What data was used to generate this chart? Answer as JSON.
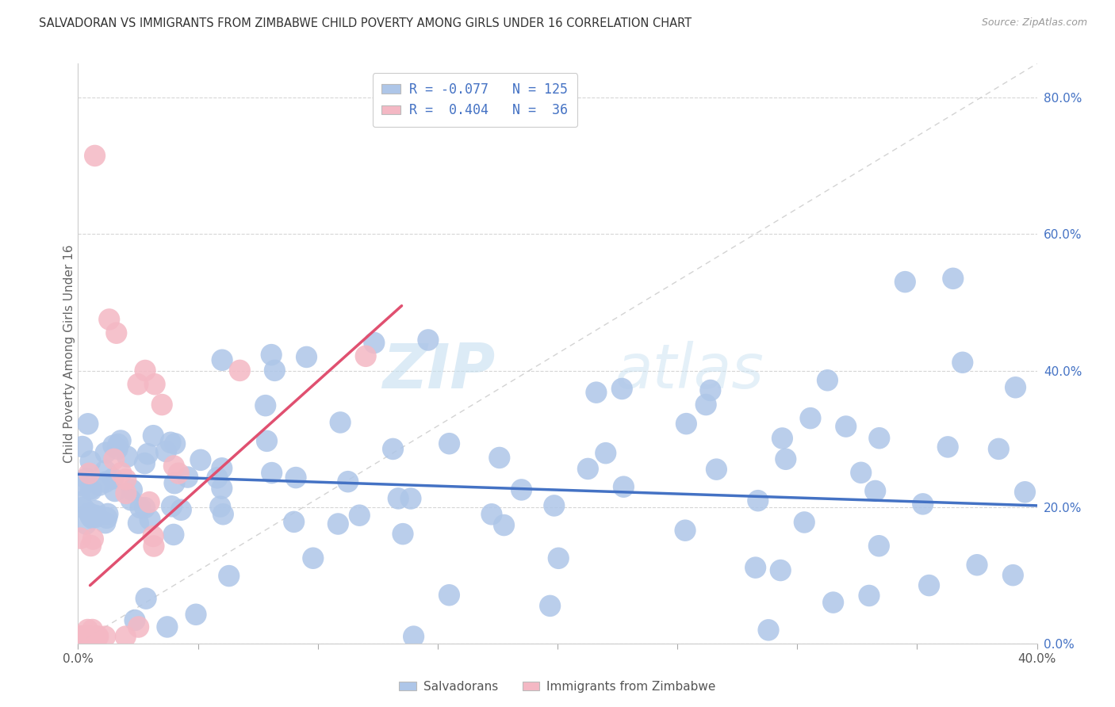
{
  "title": "SALVADORAN VS IMMIGRANTS FROM ZIMBABWE CHILD POVERTY AMONG GIRLS UNDER 16 CORRELATION CHART",
  "source": "Source: ZipAtlas.com",
  "ylabel": "Child Poverty Among Girls Under 16",
  "legend_blue_label": "Salvadorans",
  "legend_pink_label": "Immigrants from Zimbabwe",
  "R_blue": -0.077,
  "N_blue": 125,
  "R_pink": 0.404,
  "N_pink": 36,
  "blue_color": "#aec6e8",
  "blue_line_color": "#4472c4",
  "pink_color": "#f4b8c4",
  "pink_line_color": "#e05070",
  "diagonal_color": "#c8c8c8",
  "watermark_zip": "ZIP",
  "watermark_atlas": "atlas",
  "xlim": [
    0.0,
    0.4
  ],
  "ylim": [
    0.0,
    0.85
  ],
  "background_color": "#ffffff",
  "grid_color": "#cccccc",
  "yticks": [
    0.0,
    0.2,
    0.4,
    0.6,
    0.8
  ],
  "xtick_labels_show": [
    0.0,
    0.4
  ],
  "blue_trend_y0": 0.248,
  "blue_trend_y1": 0.202,
  "pink_trend_x0": 0.005,
  "pink_trend_y0": 0.085,
  "pink_trend_x1": 0.135,
  "pink_trend_y1": 0.495
}
